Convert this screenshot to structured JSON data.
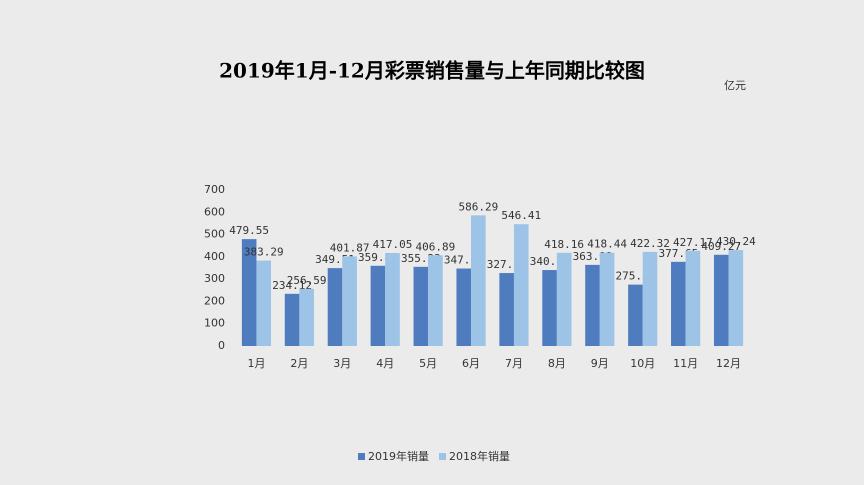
{
  "chart_data": {
    "type": "bar",
    "title": "2019年1月-12月彩票销售量与上年同期比较图",
    "unit": "亿元",
    "categories": [
      "1月",
      "2月",
      "3月",
      "4月",
      "5月",
      "6月",
      "7月",
      "8月",
      "9月",
      "10月",
      "11月",
      "12月"
    ],
    "series": [
      {
        "name": "2019年销量",
        "color": "#4f7cbf",
        "values": [
          479.55,
          234.12,
          349.51,
          359.88,
          355.23,
          347.67,
          327.34,
          340.81,
          363.99,
          275.51,
          377.65,
          409.27
        ]
      },
      {
        "name": "2018年销量",
        "color": "#9dc3e6",
        "values": [
          383.29,
          256.59,
          401.87,
          417.05,
          406.89,
          586.29,
          546.41,
          418.16,
          418.44,
          422.32,
          427.17,
          430.24
        ]
      }
    ],
    "ylim": [
      0,
      700
    ],
    "yticks": [
      0,
      100,
      200,
      300,
      400,
      500,
      600,
      700
    ],
    "grid": false,
    "legend": "bottom"
  }
}
